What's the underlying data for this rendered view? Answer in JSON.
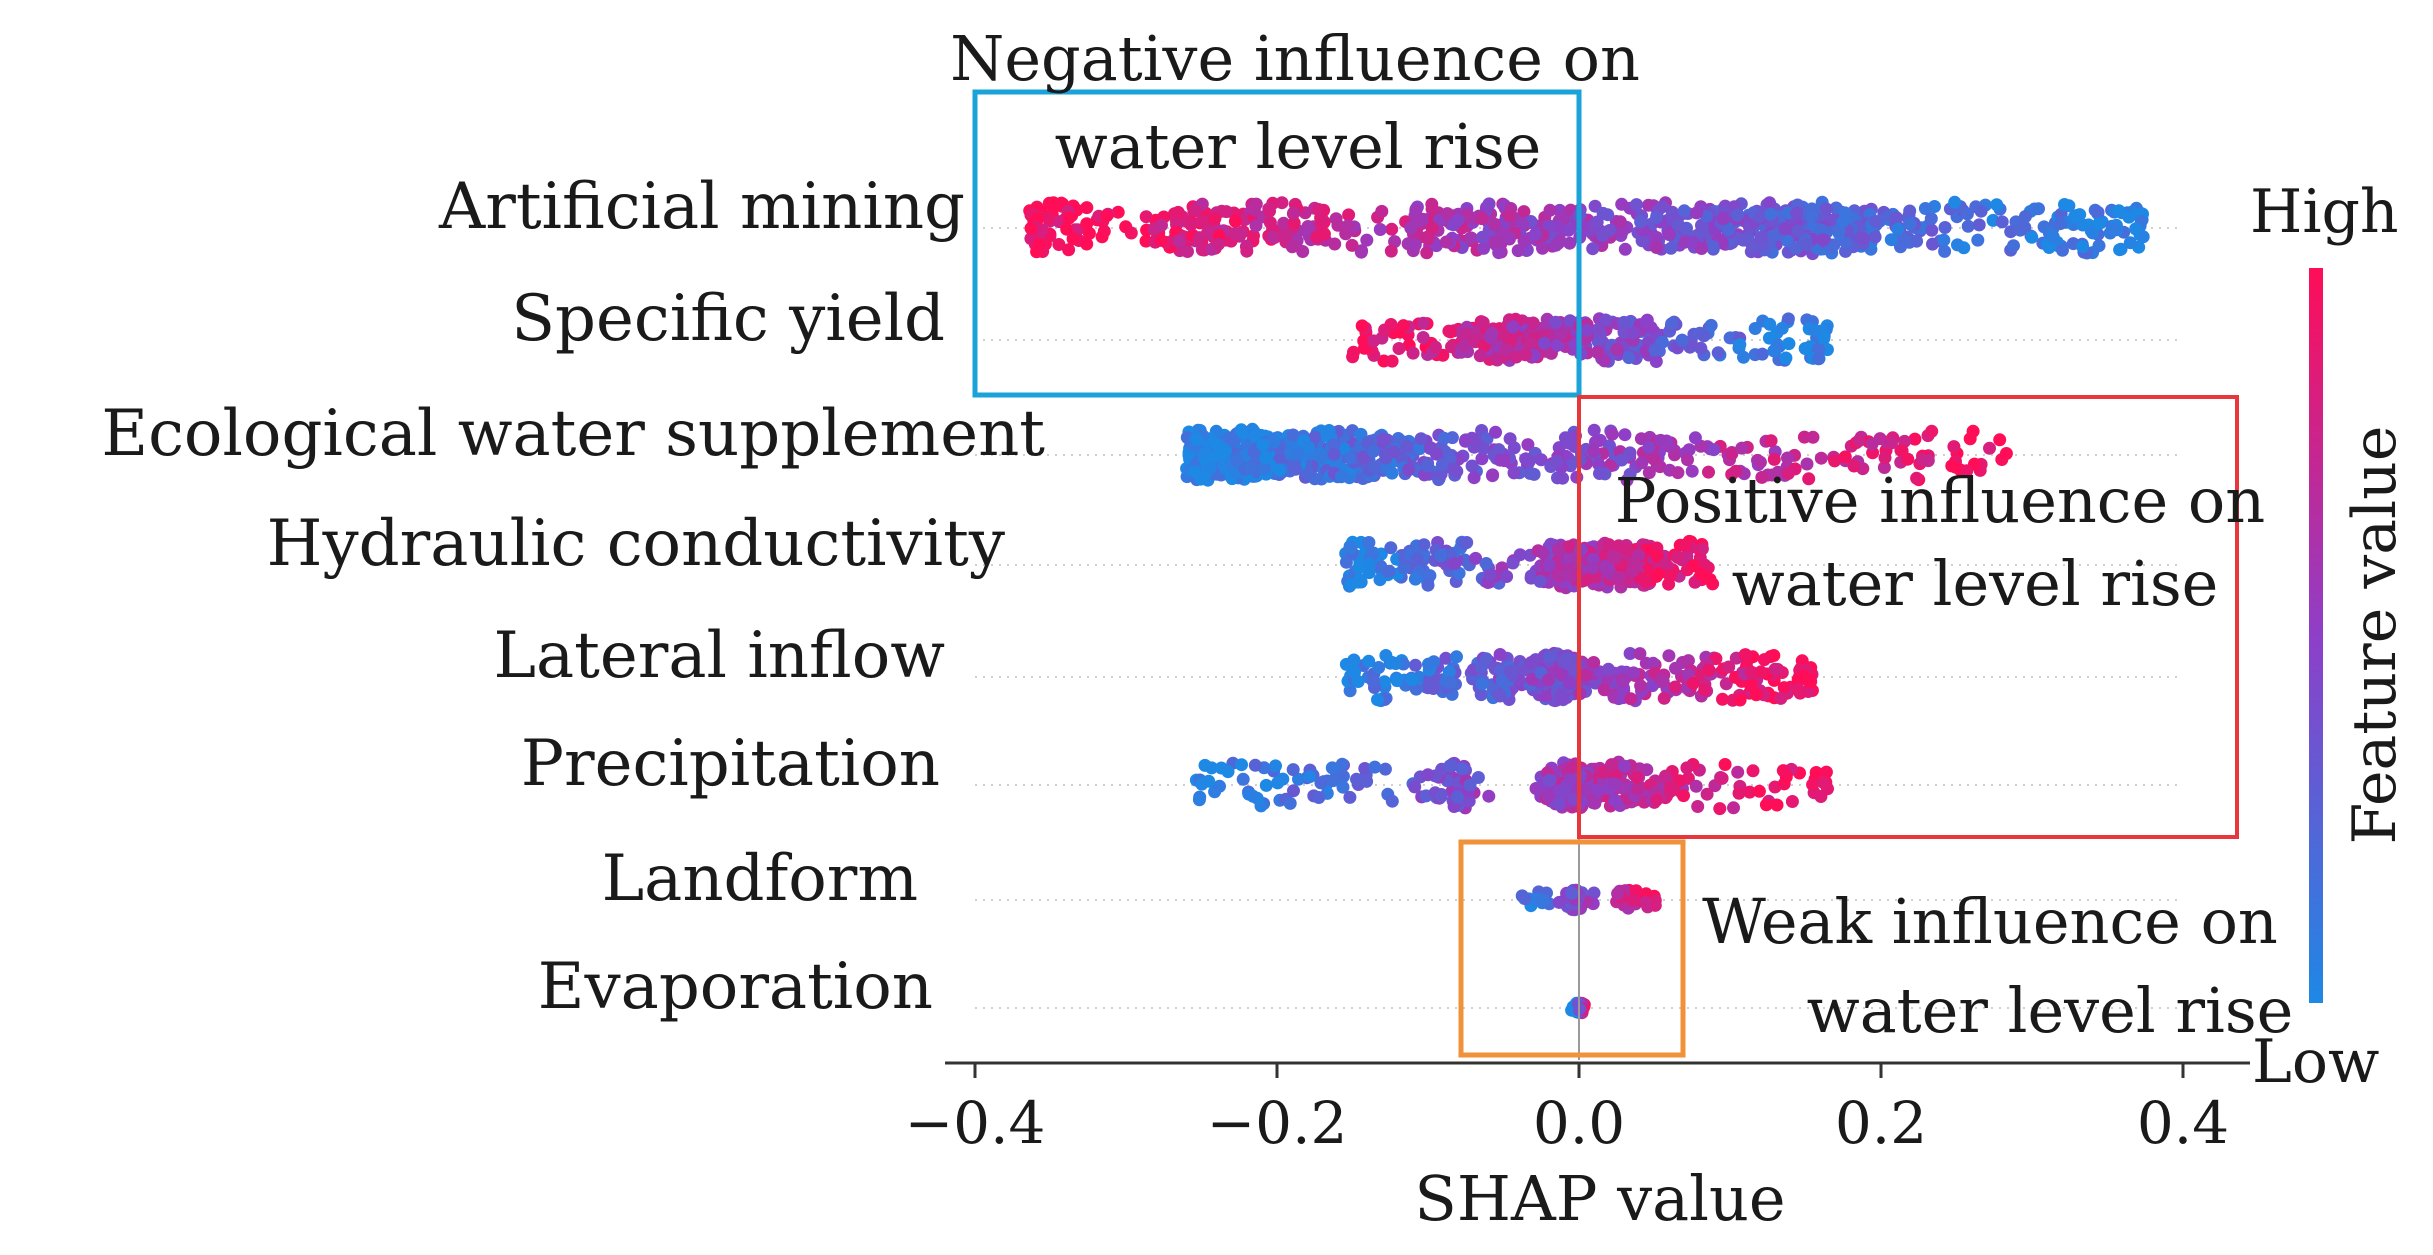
{
  "chart_data": {
    "type": "beeswarm",
    "xlabel": "SHAP value",
    "xlim": [
      -0.4,
      0.4
    ],
    "xticks": [
      -0.4,
      -0.2,
      0.0,
      0.2,
      0.4
    ],
    "xtick_labels": [
      "−0.4",
      "−0.2",
      "0.0",
      "0.2",
      "0.4"
    ],
    "features": [
      {
        "name": "Artificial mining",
        "min": -0.365,
        "max": 0.375,
        "low_side": "positive"
      },
      {
        "name": "Specific yield",
        "min": -0.15,
        "max": 0.165,
        "low_side": "positive"
      },
      {
        "name": "Ecological water supplement",
        "min": -0.26,
        "max": 0.29,
        "low_side": "negative"
      },
      {
        "name": "Hydraulic conductivity",
        "min": -0.155,
        "max": 0.09,
        "low_side": "negative"
      },
      {
        "name": "Lateral inflow",
        "min": -0.155,
        "max": 0.155,
        "low_side": "negative"
      },
      {
        "name": "Precipitation",
        "min": -0.255,
        "max": 0.165,
        "low_side": "negative"
      },
      {
        "name": "Landform",
        "min": -0.045,
        "max": 0.055,
        "low_side": "negative"
      },
      {
        "name": "Evaporation",
        "min": -0.002,
        "max": 0.004,
        "low_side": "negative"
      }
    ],
    "colorbar": {
      "title": "Feature value",
      "high_label": "High",
      "low_label": "Low",
      "high_color": "#ff0d57",
      "mid_color": "#8e3fc8",
      "low_color": "#1e88e5"
    },
    "annotations": [
      {
        "name": "negative-influence",
        "line1": "Negative influence on",
        "line2": "water level rise",
        "box_color": "#1aa3d9"
      },
      {
        "name": "positive-influence",
        "line1": "Positive influence on",
        "line2": "water level rise",
        "box_color": "#e8363d"
      },
      {
        "name": "weak-influence",
        "line1": "Weak influence on",
        "line2": "water level rise",
        "box_color": "#f0923a"
      }
    ]
  }
}
